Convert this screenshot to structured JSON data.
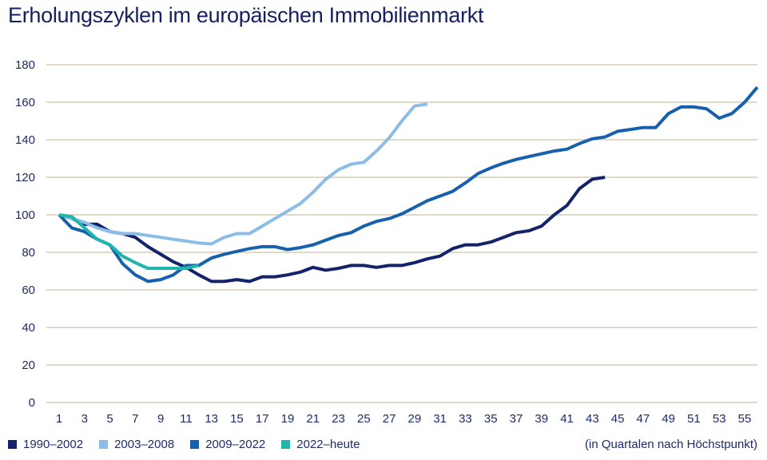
{
  "title": "Erholungszyklen im europäischen Immobilienmarkt",
  "note": "(in Quartalen nach Höchstpunkt)",
  "colors": {
    "grid": "#d6ccb6",
    "text": "#1d2a6b"
  },
  "chart_data": {
    "type": "line",
    "title": "Erholungszyklen im europäischen Immobilienmarkt",
    "xlabel": "(in Quartalen nach Höchstpunkt)",
    "ylabel": "",
    "xlim": [
      1,
      55
    ],
    "ylim": [
      0,
      180
    ],
    "grid": true,
    "legend_position": "bottom-left",
    "xticks": [
      "1",
      "3",
      "5",
      "7",
      "9",
      "11",
      "13",
      "15",
      "17",
      "19",
      "21",
      "23",
      "25",
      "27",
      "29",
      "31",
      "33",
      "35",
      "37",
      "39",
      "41",
      "43",
      "45",
      "47",
      "49",
      "51",
      "53",
      "55"
    ],
    "yticks": [
      "0",
      "20",
      "40",
      "60",
      "80",
      "100",
      "120",
      "140",
      "160",
      "180"
    ],
    "series": [
      {
        "name": "1990–2002",
        "color": "#14216b",
        "values": [
          100,
          98,
          95,
          95,
          91,
          90,
          88,
          83,
          79,
          75,
          72,
          68,
          64.5,
          64.5,
          65.5,
          64.5,
          67,
          67,
          68,
          69.5,
          72,
          70.5,
          71.5,
          73,
          73,
          72,
          73,
          73,
          74.5,
          76.5,
          78,
          82,
          84,
          84,
          85.5,
          88,
          90.5,
          91.5,
          94,
          100,
          105,
          114,
          119,
          120
        ]
      },
      {
        "name": "2003–2008",
        "color": "#8bbde6",
        "values": [
          100,
          98,
          96,
          93,
          91,
          90,
          90,
          89,
          88,
          87,
          86,
          85,
          84.5,
          88,
          90,
          90,
          94,
          98,
          102,
          106,
          112,
          119,
          124,
          127,
          128,
          134,
          141,
          150,
          158,
          159
        ]
      },
      {
        "name": "2009–2022",
        "color": "#1760ad",
        "values": [
          100,
          93,
          91,
          87,
          84,
          74,
          68,
          64.5,
          65.5,
          68,
          73,
          73,
          77,
          79,
          80.5,
          82,
          83,
          83,
          81.5,
          82.5,
          84,
          86.5,
          89,
          90.5,
          94,
          96.5,
          98,
          100.5,
          104,
          107.5,
          110,
          112.5,
          117,
          122,
          125,
          127.5,
          129.5,
          131,
          132.5,
          134,
          135,
          138,
          140.5,
          141.5,
          144.5,
          145.5,
          146.5,
          146.5,
          154,
          157.5,
          157.5,
          156.5,
          151.5,
          154,
          160,
          168
        ]
      },
      {
        "name": "2022–heute",
        "color": "#1fb5ac",
        "values": [
          100,
          99,
          93,
          87,
          84,
          78,
          74.5,
          71.5,
          71.5,
          71.5,
          71.5,
          73
        ]
      }
    ]
  }
}
